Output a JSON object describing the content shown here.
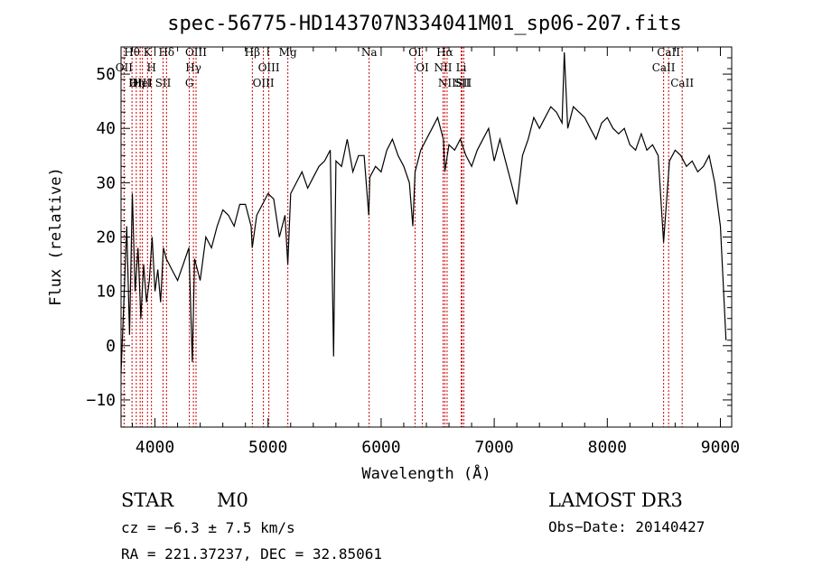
{
  "chart_data": {
    "type": "line",
    "title": "spec-56775-HD143707N334041M01_sp06-207.fits",
    "xlabel": "Wavelength (Å)",
    "ylabel": "Flux (relative)",
    "xlim": [
      3700,
      9100
    ],
    "ylim": [
      -15,
      55
    ],
    "xticks": [
      4000,
      5000,
      6000,
      7000,
      8000,
      9000
    ],
    "yticks": [
      -10,
      0,
      10,
      20,
      30,
      40,
      50
    ],
    "grid": false,
    "series": [
      {
        "name": "flux",
        "color": "#000000",
        "x": [
          3700,
          3725,
          3750,
          3775,
          3800,
          3825,
          3850,
          3875,
          3900,
          3925,
          3950,
          3975,
          4000,
          4025,
          4050,
          4075,
          4100,
          4150,
          4200,
          4250,
          4300,
          4330,
          4350,
          4400,
          4450,
          4500,
          4550,
          4600,
          4650,
          4700,
          4750,
          4800,
          4850,
          4860,
          4900,
          4950,
          5000,
          5050,
          5100,
          5150,
          5175,
          5200,
          5250,
          5300,
          5350,
          5400,
          5450,
          5500,
          5550,
          5580,
          5600,
          5650,
          5700,
          5750,
          5800,
          5850,
          5890,
          5900,
          5950,
          6000,
          6050,
          6100,
          6150,
          6200,
          6250,
          6280,
          6300,
          6350,
          6400,
          6450,
          6500,
          6550,
          6563,
          6600,
          6650,
          6700,
          6750,
          6800,
          6850,
          6900,
          6950,
          7000,
          7050,
          7100,
          7150,
          7200,
          7250,
          7300,
          7350,
          7400,
          7450,
          7500,
          7550,
          7600,
          7620,
          7650,
          7700,
          7750,
          7800,
          7850,
          7900,
          7950,
          8000,
          8050,
          8100,
          8150,
          8200,
          8250,
          8300,
          8350,
          8400,
          8450,
          8498,
          8550,
          8600,
          8650,
          8700,
          8750,
          8800,
          8850,
          8900,
          8950,
          9000,
          9050
        ],
        "values": [
          -5,
          8,
          22,
          2,
          28,
          10,
          18,
          5,
          15,
          8,
          12,
          20,
          10,
          14,
          8,
          18,
          16,
          14,
          12,
          15,
          18,
          -3,
          16,
          12,
          20,
          18,
          22,
          25,
          24,
          22,
          26,
          26,
          22,
          18,
          24,
          26,
          28,
          27,
          20,
          24,
          15,
          28,
          30,
          32,
          29,
          31,
          33,
          34,
          36,
          -2,
          34,
          33,
          38,
          32,
          35,
          35,
          24,
          31,
          33,
          32,
          36,
          38,
          35,
          33,
          30,
          22,
          32,
          36,
          38,
          40,
          42,
          38,
          32,
          37,
          36,
          38,
          35,
          33,
          36,
          38,
          40,
          34,
          38,
          34,
          30,
          26,
          35,
          38,
          42,
          40,
          42,
          44,
          43,
          41,
          54,
          40,
          44,
          43,
          42,
          40,
          38,
          41,
          42,
          40,
          39,
          40,
          37,
          36,
          39,
          36,
          37,
          35,
          19,
          34,
          36,
          35,
          33,
          34,
          32,
          33,
          35,
          30,
          22,
          1
        ]
      }
    ],
    "line_markers": [
      {
        "label": "Hθ",
        "wavelength": 3797
      },
      {
        "label": "OII",
        "wavelength": 3727
      },
      {
        "label": "OIII",
        "wavelength": 3869
      },
      {
        "label": "Hη",
        "wavelength": 3835
      },
      {
        "label": "K",
        "wavelength": 3934
      },
      {
        "label": "HeI",
        "wavelength": 3889
      },
      {
        "label": "H",
        "wavelength": 3969
      },
      {
        "label": "SII",
        "wavelength": 4072
      },
      {
        "label": "Hδ",
        "wavelength": 4102
      },
      {
        "label": "OIII",
        "wavelength": 4363
      },
      {
        "label": "Hγ",
        "wavelength": 4340
      },
      {
        "label": "G",
        "wavelength": 4304
      },
      {
        "label": "Hβ",
        "wavelength": 4861
      },
      {
        "label": "OIII",
        "wavelength": 5007
      },
      {
        "label": "OIII",
        "wavelength": 4959
      },
      {
        "label": "Mg",
        "wavelength": 5175
      },
      {
        "label": "Na",
        "wavelength": 5894
      },
      {
        "label": "OI",
        "wavelength": 6300
      },
      {
        "label": "OI",
        "wavelength": 6364
      },
      {
        "label": "Hα",
        "wavelength": 6563
      },
      {
        "label": "NII",
        "wavelength": 6548
      },
      {
        "label": "NII",
        "wavelength": 6583
      },
      {
        "label": "SII",
        "wavelength": 6716
      },
      {
        "label": "Li",
        "wavelength": 6708
      },
      {
        "label": "SII",
        "wavelength": 6731
      },
      {
        "label": "CaII",
        "wavelength": 8542
      },
      {
        "label": "CaII",
        "wavelength": 8498
      },
      {
        "label": "CaII",
        "wavelength": 8662
      }
    ]
  },
  "info": {
    "object_class": "STAR",
    "subclass": "M0",
    "survey": "LAMOST DR3",
    "cz": "cz = −6.3 ± 7.5 km/s",
    "obs_date": "Obs−Date: 20140427",
    "coords": "RA = 221.37237, DEC =  32.85061"
  },
  "colors": {
    "line": "#000000",
    "marker": "#cc0000",
    "axis": "#000000",
    "background": "#ffffff"
  }
}
